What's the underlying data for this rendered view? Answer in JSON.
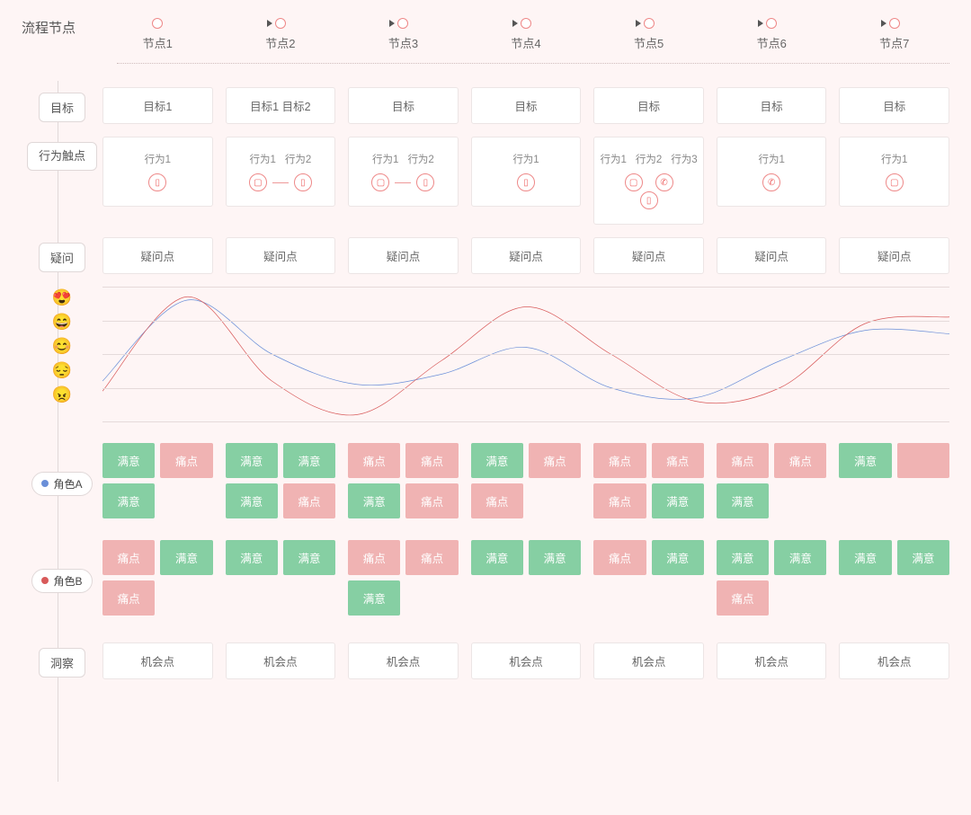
{
  "colors": {
    "background": "#fef5f5",
    "card_bg": "#ffffff",
    "card_border": "#ece5e5",
    "vline": "#e0d8d8",
    "node_ring": "#e88888",
    "tag_green": "#86cfa3",
    "tag_pink": "#f0b3b3",
    "line_blue": "#6a8fd8",
    "line_red": "#d85a5a",
    "grid": "#e5dada",
    "roleA_dot": "#6a8fd8",
    "roleB_dot": "#d85a5a"
  },
  "header": {
    "title": "流程节点"
  },
  "nodes": [
    "节点1",
    "节点2",
    "节点3",
    "节点4",
    "节点5",
    "节点6",
    "节点7"
  ],
  "node_has_arrow": [
    false,
    true,
    true,
    true,
    true,
    true,
    true
  ],
  "rows": {
    "goal_label": "目标",
    "goals": [
      "目标1",
      "目标1  目标2",
      "目标",
      "目标",
      "目标",
      "目标",
      "目标"
    ],
    "behavior_label": "行为触点",
    "behaviors": [
      {
        "labels": [
          "行为1"
        ],
        "icons": [
          "phone"
        ]
      },
      {
        "labels": [
          "行为1",
          "行为2"
        ],
        "icons": [
          "desktop",
          "phone"
        ],
        "linked": true
      },
      {
        "labels": [
          "行为1",
          "行为2"
        ],
        "icons": [
          "desktop",
          "phone"
        ],
        "linked": true
      },
      {
        "labels": [
          "行为1"
        ],
        "icons": [
          "phone"
        ]
      },
      {
        "labels": [
          "行为1",
          "行为2",
          "行为3"
        ],
        "icons": [
          "desktop",
          "call",
          "phone"
        ],
        "cluster": true
      },
      {
        "labels": [
          "行为1"
        ],
        "icons": [
          "call"
        ]
      },
      {
        "labels": [
          "行为1"
        ],
        "icons": [
          "desktop"
        ]
      }
    ],
    "question_label": "疑问",
    "questions": [
      "疑问点",
      "疑问点",
      "疑问点",
      "疑问点",
      "疑问点",
      "疑问点",
      "疑问点"
    ],
    "insight_label": "洞察",
    "insights": [
      "机会点",
      "机会点",
      "机会点",
      "机会点",
      "机会点",
      "机会点",
      "机会点"
    ]
  },
  "emotion": {
    "emojis": [
      "😍",
      "😄",
      "😊",
      "😔",
      "😠"
    ],
    "height": 150,
    "ylim": [
      0,
      4
    ],
    "grid_y": [
      0,
      1,
      2,
      3,
      4
    ],
    "series": {
      "blue": {
        "color": "#6a8fd8",
        "points": [
          1.2,
          3.6,
          2.0,
          1.1,
          1.4,
          2.2,
          1.0,
          0.7,
          1.8,
          2.7,
          2.6
        ]
      },
      "red": {
        "color": "#d85a5a",
        "points": [
          0.9,
          3.7,
          1.2,
          0.2,
          1.8,
          3.4,
          2.0,
          0.6,
          1.0,
          2.9,
          3.1
        ]
      }
    }
  },
  "roles": {
    "A": {
      "label": "角色A",
      "dot_color": "#6a8fd8",
      "grid": [
        [
          [
            "满意",
            "green"
          ],
          [
            "痛点",
            "pink"
          ],
          [
            "满意",
            "green"
          ],
          [
            "",
            ""
          ]
        ],
        [
          [
            "满意",
            "green"
          ],
          [
            "满意",
            "green"
          ],
          [
            "满意",
            "green"
          ],
          [
            "痛点",
            "pink"
          ]
        ],
        [
          [
            "痛点",
            "pink"
          ],
          [
            "痛点",
            "pink"
          ],
          [
            "满意",
            "green"
          ],
          [
            "痛点",
            "pink"
          ]
        ],
        [
          [
            "满意",
            "green"
          ],
          [
            "痛点",
            "pink"
          ],
          [
            "痛点",
            "pink"
          ],
          [
            "",
            ""
          ]
        ],
        [
          [
            "痛点",
            "pink"
          ],
          [
            "痛点",
            "pink"
          ],
          [
            "痛点",
            "pink"
          ],
          [
            "满意",
            "green"
          ]
        ],
        [
          [
            "痛点",
            "pink"
          ],
          [
            "痛点",
            "pink"
          ],
          [
            "满意",
            "green"
          ],
          [
            "",
            ""
          ]
        ],
        [
          [
            "满意",
            "green"
          ],
          [
            "",
            "pink"
          ],
          [
            "",
            ""
          ],
          [
            "",
            ""
          ]
        ]
      ],
      "rows": 2
    },
    "B": {
      "label": "角色B",
      "dot_color": "#d85a5a",
      "grid": [
        [
          [
            "痛点",
            "pink"
          ],
          [
            "满意",
            "green"
          ],
          [
            "痛点",
            "pink"
          ],
          [
            "",
            ""
          ]
        ],
        [
          [
            "满意",
            "green"
          ],
          [
            "满意",
            "green"
          ],
          [
            "",
            ""
          ],
          [
            "",
            ""
          ]
        ],
        [
          [
            "痛点",
            "pink"
          ],
          [
            "痛点",
            "pink"
          ],
          [
            "满意",
            "green"
          ],
          [
            "",
            ""
          ]
        ],
        [
          [
            "满意",
            "green"
          ],
          [
            "满意",
            "green"
          ],
          [
            "",
            ""
          ],
          [
            "",
            ""
          ]
        ],
        [
          [
            "痛点",
            "pink"
          ],
          [
            "满意",
            "green"
          ],
          [
            "",
            ""
          ],
          [
            "",
            ""
          ]
        ],
        [
          [
            "满意",
            "green"
          ],
          [
            "满意",
            "green"
          ],
          [
            "痛点",
            "pink"
          ],
          [
            "",
            ""
          ]
        ],
        [
          [
            "满意",
            "green"
          ],
          [
            "满意",
            "green"
          ],
          [
            "",
            ""
          ],
          [
            "",
            ""
          ]
        ]
      ],
      "rows": 2
    }
  }
}
